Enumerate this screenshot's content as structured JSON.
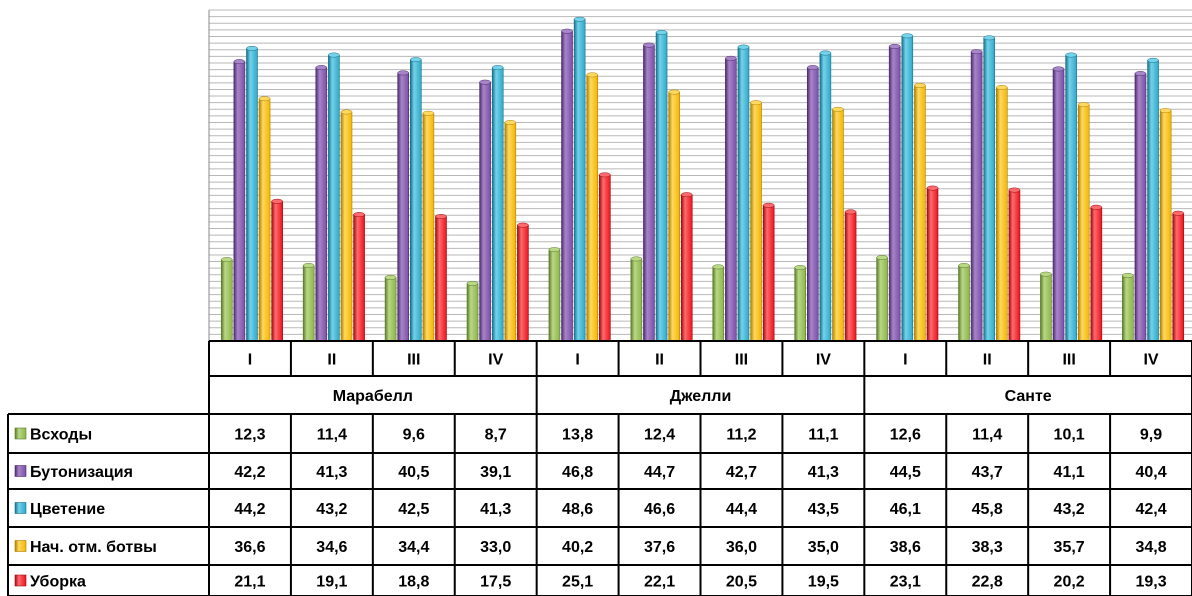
{
  "chart_data": {
    "type": "bar",
    "title": "",
    "xlabel": "",
    "ylabel": "",
    "ylim": [
      0,
      50
    ],
    "grid": true,
    "legend": "left, inside data table",
    "groups": [
      {
        "name": "Марабелл",
        "categories": [
          "I",
          "II",
          "III",
          "IV"
        ]
      },
      {
        "name": "Джелли",
        "categories": [
          "I",
          "II",
          "III",
          "IV"
        ]
      },
      {
        "name": "Санте",
        "categories": [
          "I",
          "II",
          "III",
          "IV"
        ]
      }
    ],
    "series": [
      {
        "name": "Всходы",
        "color": "#8db44a",
        "colorDark": "#5c7a2a",
        "colorLight": "#b8d884",
        "values": [
          12.3,
          11.4,
          9.6,
          8.7,
          13.8,
          12.4,
          11.2,
          11.1,
          12.6,
          11.4,
          10.1,
          9.9
        ],
        "labels": [
          "12,3",
          "11,4",
          "9,6",
          "8,7",
          "13,8",
          "12,4",
          "11,2",
          "11,1",
          "12,6",
          "11,4",
          "10,1",
          "9,9"
        ]
      },
      {
        "name": "Бутонизация",
        "color": "#7b4fa6",
        "colorDark": "#4b2c6e",
        "colorLight": "#a884c9",
        "values": [
          42.2,
          41.3,
          40.5,
          39.1,
          46.8,
          44.7,
          42.7,
          41.3,
          44.5,
          43.7,
          41.1,
          40.4
        ],
        "labels": [
          "42,2",
          "41,3",
          "40,5",
          "39,1",
          "46,8",
          "44,7",
          "42,7",
          "41,3",
          "44,5",
          "43,7",
          "41,1",
          "40,4"
        ]
      },
      {
        "name": "Цветение",
        "color": "#2fa8c8",
        "colorDark": "#16708a",
        "colorLight": "#74d2ea",
        "values": [
          44.2,
          43.2,
          42.5,
          41.3,
          48.6,
          46.6,
          44.4,
          43.5,
          46.1,
          45.8,
          43.2,
          42.4
        ],
        "labels": [
          "44,2",
          "43,2",
          "42,5",
          "41,3",
          "48,6",
          "46,6",
          "44,4",
          "43,5",
          "46,1",
          "45,8",
          "43,2",
          "42,4"
        ]
      },
      {
        "name": "Нач. отм. ботвы",
        "color": "#f2b600",
        "colorDark": "#b08000",
        "colorLight": "#ffd860",
        "values": [
          36.6,
          34.6,
          34.4,
          33.0,
          40.2,
          37.6,
          36.0,
          35.0,
          38.6,
          38.3,
          35.7,
          34.8
        ],
        "labels": [
          "36,6",
          "34,6",
          "34,4",
          "33,0",
          "40,2",
          "37,6",
          "36,0",
          "35,0",
          "38,6",
          "38,3",
          "35,7",
          "34,8"
        ]
      },
      {
        "name": "Уборка",
        "color": "#e8141b",
        "colorDark": "#a00a0e",
        "colorLight": "#ff6a6e",
        "values": [
          21.1,
          19.1,
          18.8,
          17.5,
          25.1,
          22.1,
          20.5,
          19.5,
          23.1,
          22.8,
          20.2,
          19.3
        ],
        "labels": [
          "21,1",
          "19,1",
          "18,8",
          "17,5",
          "25,1",
          "22,1",
          "20,5",
          "19,5",
          "23,1",
          "22,8",
          "20,2",
          "19,3"
        ]
      }
    ]
  }
}
